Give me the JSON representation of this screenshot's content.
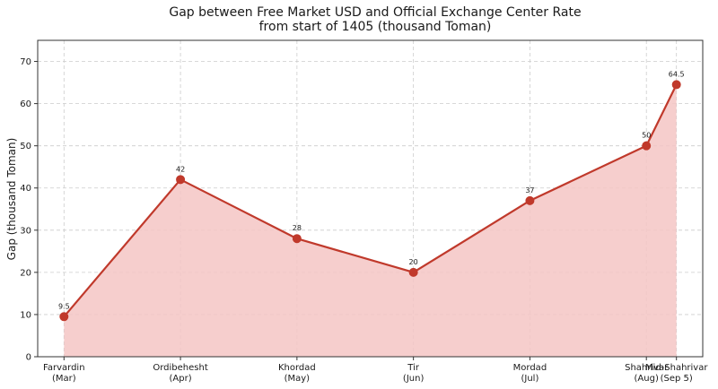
{
  "chart_data": {
    "type": "area",
    "title_line1": "Gap between Free Market USD and Official Exchange Center Rate",
    "title_line2": "from start of 1405 (thousand Toman)",
    "xlabel": "",
    "ylabel": "Gap (thousand Toman)",
    "ylim": [
      0,
      75
    ],
    "yticks": [
      0,
      10,
      20,
      30,
      40,
      50,
      60,
      70
    ],
    "grid": true,
    "points": [
      {
        "x": 0,
        "label1": "Farvardin",
        "label2": "(Mar)",
        "value": 9.5,
        "value_label": "9.5"
      },
      {
        "x": 31,
        "label1": "Ordibehesht",
        "label2": "(Apr)",
        "value": 42,
        "value_label": "42"
      },
      {
        "x": 62,
        "label1": "Khordad",
        "label2": "(May)",
        "value": 28,
        "value_label": "28"
      },
      {
        "x": 93,
        "label1": "Tir",
        "label2": "(Jun)",
        "value": 20,
        "value_label": "20"
      },
      {
        "x": 124,
        "label1": "Mordad",
        "label2": "(Jul)",
        "value": 37,
        "value_label": "37"
      },
      {
        "x": 155,
        "label1": "Shahrivar",
        "label2": "(Aug)",
        "value": 50,
        "value_label": "50"
      },
      {
        "x": 163,
        "label1": "Mid-Shahrivar",
        "label2": "(Sep 5)",
        "value": 64.5,
        "value_label": "64.5"
      }
    ],
    "xlim": [
      -7,
      170
    ],
    "colors": {
      "line": "#c0392b",
      "fill": "#f5c6c4",
      "grid": "#cccccc",
      "axis": "#333333"
    }
  }
}
